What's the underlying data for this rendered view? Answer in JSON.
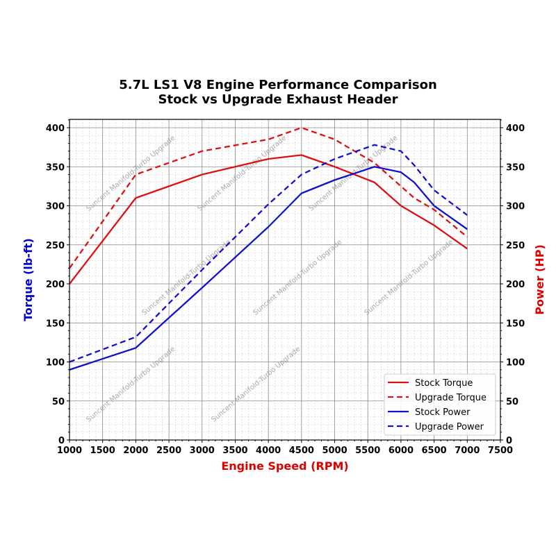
{
  "chart_data": {
    "type": "line",
    "title": [
      "5.7L LS1 V8 Engine Performance Comparison",
      "Stock vs Upgrade Exhaust Header"
    ],
    "xlabel": "Engine Speed (RPM)",
    "ylabel": "Torque (lb-ft)",
    "y2label": "Power (HP)",
    "xlim": [
      1000,
      7500
    ],
    "ylim": [
      0,
      410
    ],
    "y2lim": [
      0,
      410
    ],
    "xticks": [
      1000,
      1500,
      2000,
      2500,
      3000,
      3500,
      4000,
      4500,
      5000,
      5500,
      6000,
      6500,
      7000,
      7500
    ],
    "yticks": [
      0,
      50,
      100,
      150,
      200,
      250,
      300,
      350,
      400
    ],
    "grid": true,
    "legend_position": "bottom-right",
    "colors": {
      "torque_axis": "#0000cc",
      "power_axis": "#dd0000",
      "red": "#dd1111",
      "blue": "#1111cc"
    },
    "series": [
      {
        "name": "Stock Torque",
        "color": "#dd1111",
        "dash": false,
        "x": [
          1000,
          2000,
          3000,
          4000,
          4500,
          5000,
          5600,
          6000,
          6500,
          7000
        ],
        "y": [
          200,
          310,
          340,
          360,
          365,
          350,
          330,
          300,
          275,
          245
        ]
      },
      {
        "name": "Upgrade Torque",
        "color": "#dd1111",
        "dash": true,
        "x": [
          1000,
          2000,
          3000,
          4000,
          4500,
          5000,
          5600,
          6000,
          6200,
          6500,
          7000
        ],
        "y": [
          220,
          340,
          370,
          385,
          400,
          385,
          355,
          325,
          310,
          295,
          260
        ]
      },
      {
        "name": "Stock Power",
        "color": "#1111cc",
        "dash": false,
        "x": [
          1000,
          2000,
          3000,
          4000,
          4500,
          5000,
          5600,
          6000,
          6200,
          6500,
          7000
        ],
        "y": [
          90,
          118,
          195,
          273,
          316,
          333,
          350,
          343,
          330,
          300,
          270
        ]
      },
      {
        "name": "Upgrade Power",
        "color": "#1111cc",
        "dash": true,
        "x": [
          1000,
          2000,
          3000,
          4000,
          4500,
          5000,
          5600,
          6000,
          6200,
          6500,
          7000
        ],
        "y": [
          100,
          132,
          218,
          302,
          340,
          360,
          378,
          370,
          352,
          320,
          288
        ]
      }
    ],
    "watermark": "Suncent Manifold-Turbo Upgrade"
  }
}
